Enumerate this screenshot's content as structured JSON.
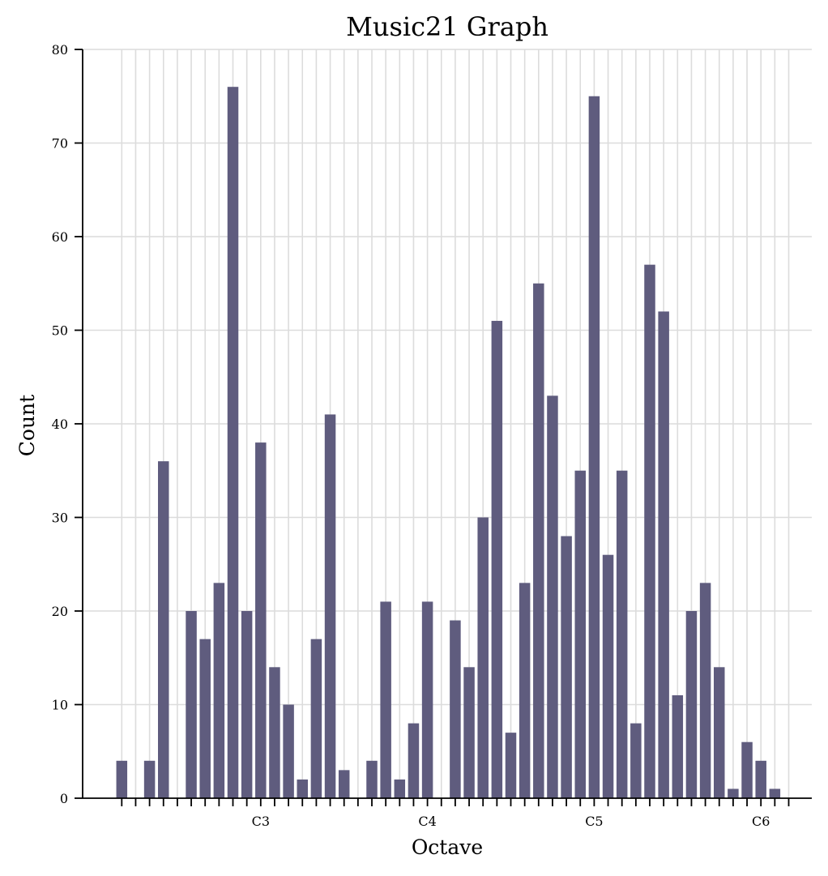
{
  "chart_data": {
    "type": "bar",
    "title": "Music21 Graph",
    "xlabel": "Octave",
    "ylabel": "Count",
    "ylim": [
      0,
      80
    ],
    "yticks": [
      0,
      10,
      20,
      30,
      40,
      50,
      60,
      70,
      80
    ],
    "x": [
      36,
      37,
      38,
      39,
      40,
      41,
      42,
      43,
      44,
      45,
      46,
      47,
      48,
      49,
      50,
      51,
      52,
      53,
      54,
      55,
      56,
      57,
      58,
      59,
      60,
      61,
      62,
      63,
      64,
      65,
      66,
      67,
      68,
      69,
      70,
      71,
      72,
      73,
      74,
      75,
      76,
      77,
      78,
      79,
      80,
      81,
      82,
      83,
      84
    ],
    "values": [
      4,
      0,
      4,
      36,
      0,
      20,
      17,
      23,
      76,
      20,
      38,
      14,
      10,
      2,
      17,
      41,
      3,
      0,
      4,
      21,
      2,
      8,
      21,
      0,
      19,
      14,
      30,
      51,
      7,
      23,
      55,
      43,
      28,
      35,
      75,
      26,
      35,
      8,
      57,
      52,
      11,
      20,
      23,
      14,
      1,
      6,
      4,
      1,
      0
    ],
    "x_tick_labels": [
      {
        "x": 46,
        "label": "C3"
      },
      {
        "x": 58,
        "label": "C4"
      },
      {
        "x": 70,
        "label": "C5"
      },
      {
        "x": 82,
        "label": "C6"
      }
    ],
    "bar_color": "#5f5c7e",
    "grid": true
  }
}
